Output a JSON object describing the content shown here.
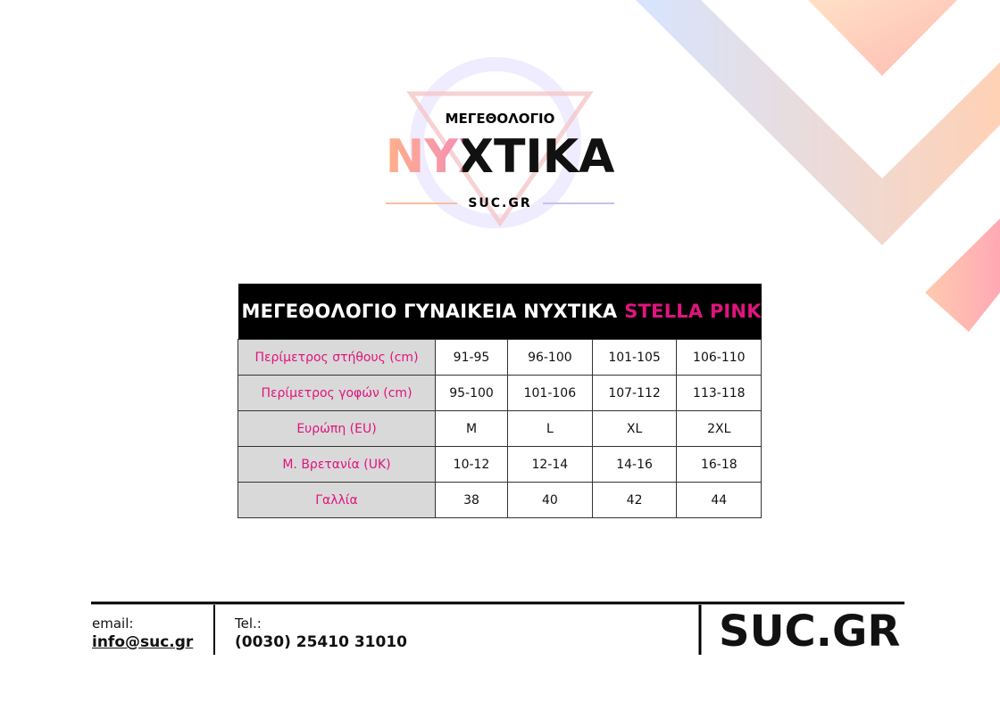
{
  "logo": {
    "top": "ΜΕΓΕΘΟΛΟΓΙΟ",
    "main": "ΝΥΧΤΙΚΑ",
    "bottom": "SUC.GR"
  },
  "table": {
    "title": "ΜΕΓΕΘΟΛΟΓΙΟ ΓΥΝΑΙΚΕΙΑ ΝΥΧΤΙΚΑ",
    "title_highlight": "STELLA PINK",
    "rows": [
      [
        "Περίμετρος στήθους (cm)",
        "91-95",
        "96-100",
        "101-105",
        "106-110"
      ],
      [
        "Περίμετρος γοφών (cm)",
        "95-100",
        "101-106",
        "107-112",
        "113-118"
      ],
      [
        "Ευρώπη (EU)",
        "M",
        "L",
        "XL",
        "2XL"
      ],
      [
        "Μ. Βρετανία (UK)",
        "10-12",
        "12-14",
        "14-16",
        "16-18"
      ],
      [
        "Γαλλία",
        "38",
        "40",
        "42",
        "44"
      ]
    ]
  },
  "footer": {
    "email_label": "email:",
    "email": "info@suc.gr",
    "tel_label": "Tel.:",
    "tel": "(0030) 25410 31010",
    "brand": "SUC.GR"
  }
}
